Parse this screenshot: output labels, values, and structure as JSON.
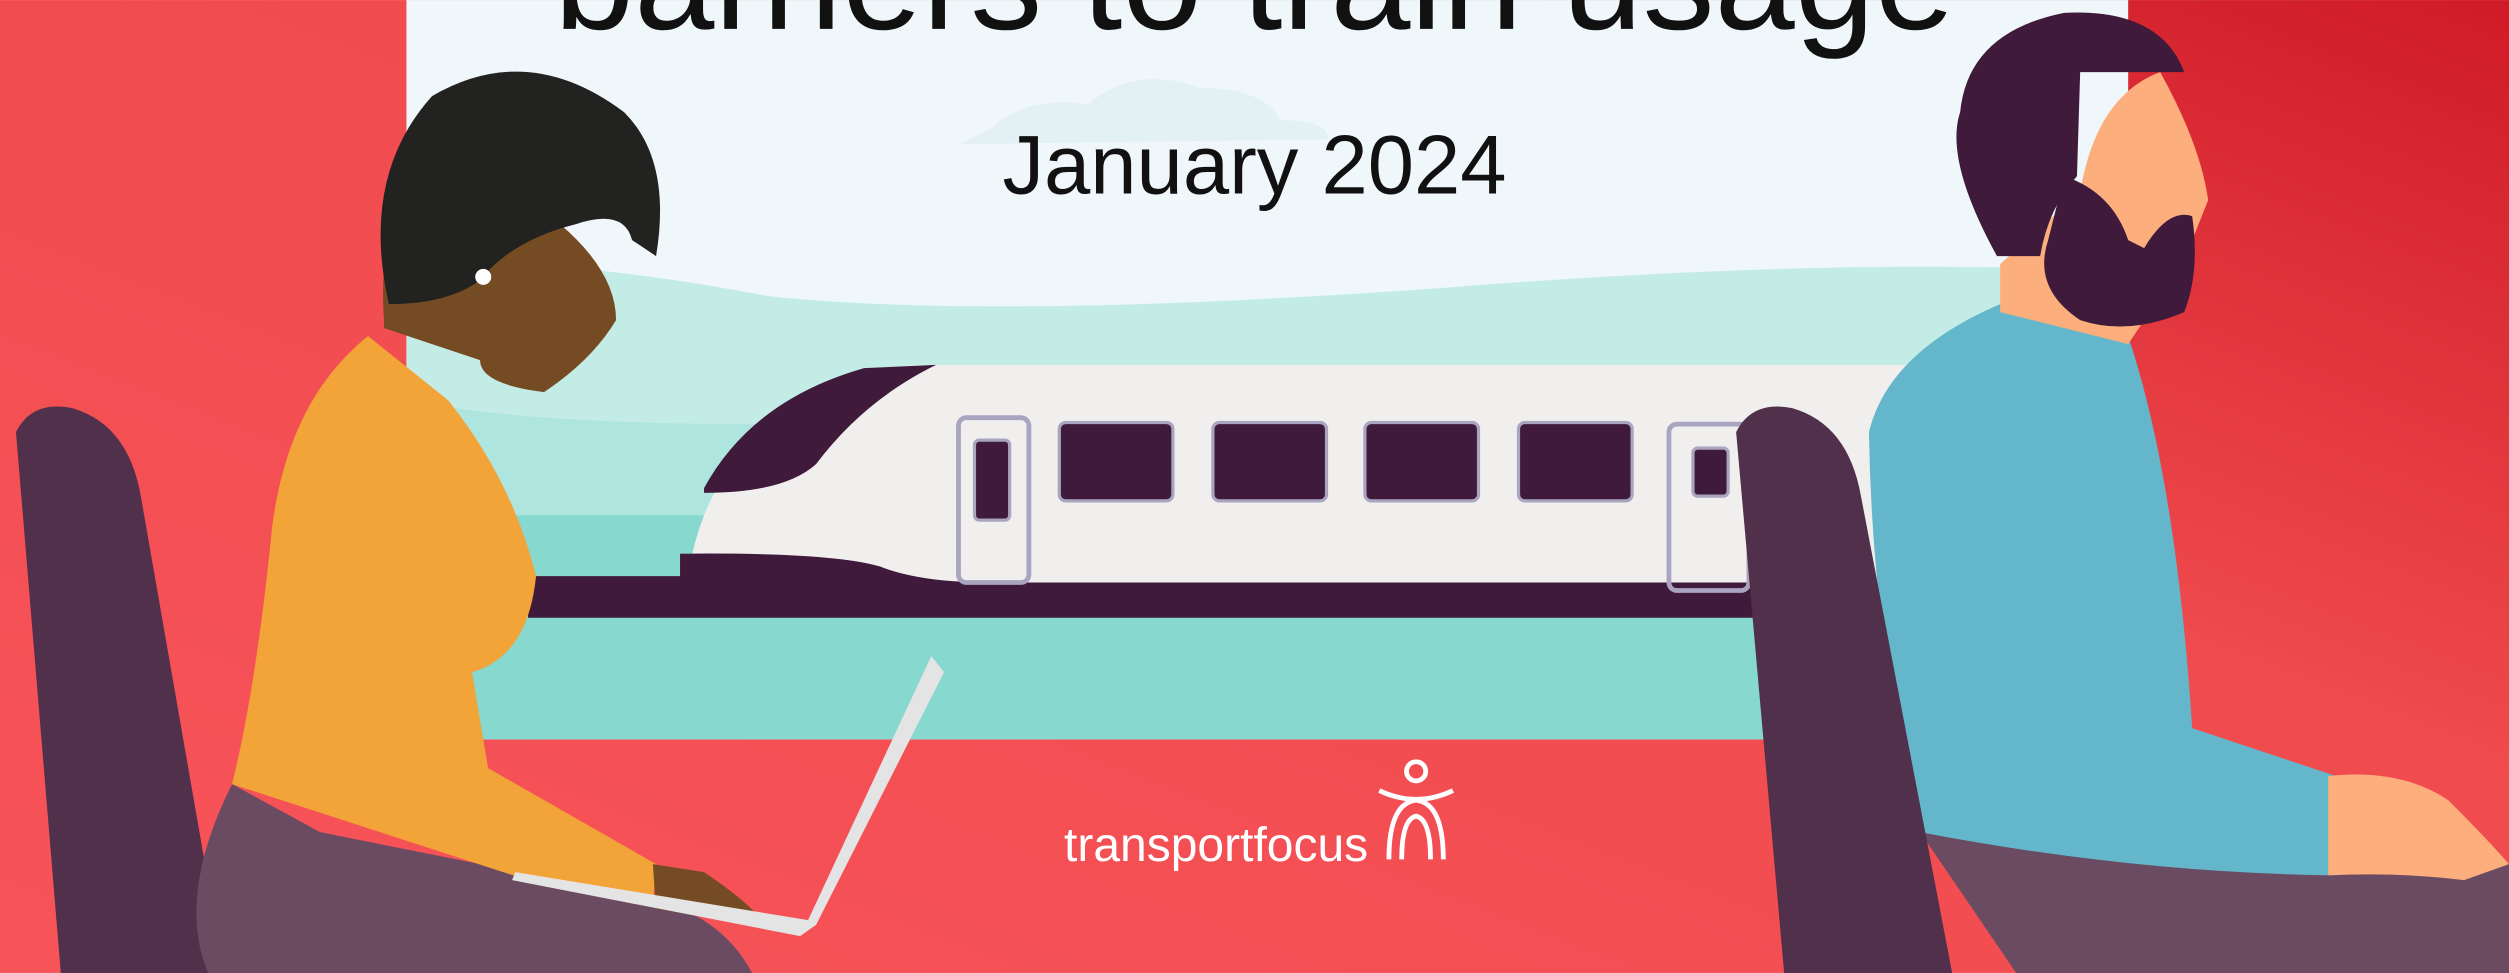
{
  "title": "barriers to train usage",
  "date": "January 2024",
  "logo": "transportfocus"
}
